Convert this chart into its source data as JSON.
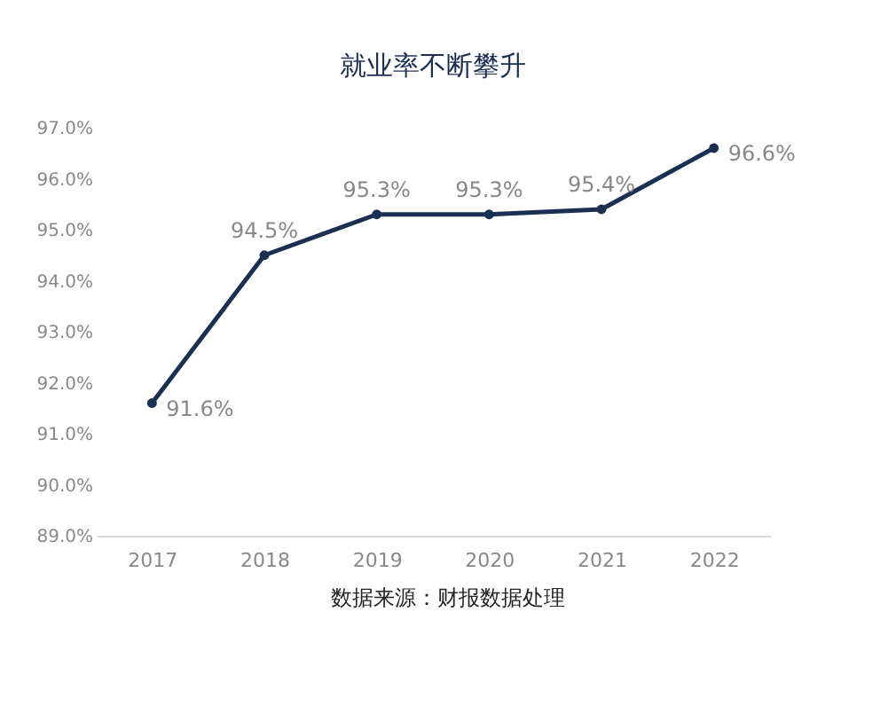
{
  "chart_data": {
    "type": "line",
    "title": "就业率不断攀升",
    "categories": [
      "2017",
      "2018",
      "2019",
      "2020",
      "2021",
      "2022"
    ],
    "series": [
      {
        "color": "#1b2f52",
        "values": [
          91.6,
          94.5,
          95.3,
          95.3,
          95.4,
          96.6
        ],
        "value_labels": [
          "91.6%",
          "94.5%",
          "95.3%",
          "95.3%",
          "95.4%",
          "96.6%"
        ]
      }
    ],
    "ylim": [
      89,
      97
    ],
    "yticks": [
      {
        "value": 89,
        "label": "89.0%"
      },
      {
        "value": 90,
        "label": "90.0%"
      },
      {
        "value": 91,
        "label": "91.0%"
      },
      {
        "value": 92,
        "label": "92.0%"
      },
      {
        "value": 93,
        "label": "93.0%"
      },
      {
        "value": 94,
        "label": "94.0%"
      },
      {
        "value": 95,
        "label": "95.0%"
      },
      {
        "value": 96,
        "label": "96.0%"
      },
      {
        "value": 97,
        "label": "97.0%"
      }
    ],
    "grid": false,
    "marker": "circle",
    "line_style": "solid",
    "annotations": [
      "数据来源：财报数据处理"
    ]
  }
}
